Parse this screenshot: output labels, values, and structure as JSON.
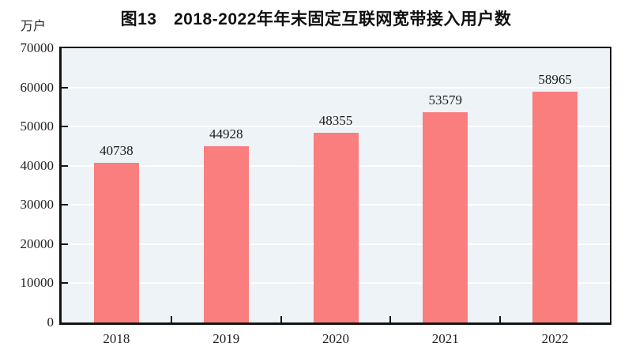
{
  "chart_data": {
    "type": "bar",
    "title": "图13　2018-2022年年末固定互联网宽带接入用户数",
    "unit_label": "万户",
    "ylabel": "万户",
    "xlabel": "",
    "categories": [
      "2018",
      "2019",
      "2020",
      "2021",
      "2022"
    ],
    "values": [
      40738,
      44928,
      48355,
      53579,
      58965
    ],
    "data_labels": [
      "40738",
      "44928",
      "48355",
      "53579",
      "58965"
    ],
    "ylim": [
      0,
      70000
    ],
    "yticks": [
      0,
      10000,
      20000,
      30000,
      40000,
      50000,
      60000,
      70000
    ],
    "ytick_labels": [
      "0",
      "10000",
      "20000",
      "30000",
      "40000",
      "50000",
      "60000",
      "70000"
    ],
    "grid": "horizontal",
    "legend_position": "none",
    "colors": {
      "bar_fill": "#fb7e7e",
      "plot_background": "#edf3f6",
      "gridline": "#ffffff",
      "axis_frame": "#141414",
      "text": "#1f1f1f",
      "page_background": "#ffffff"
    }
  }
}
